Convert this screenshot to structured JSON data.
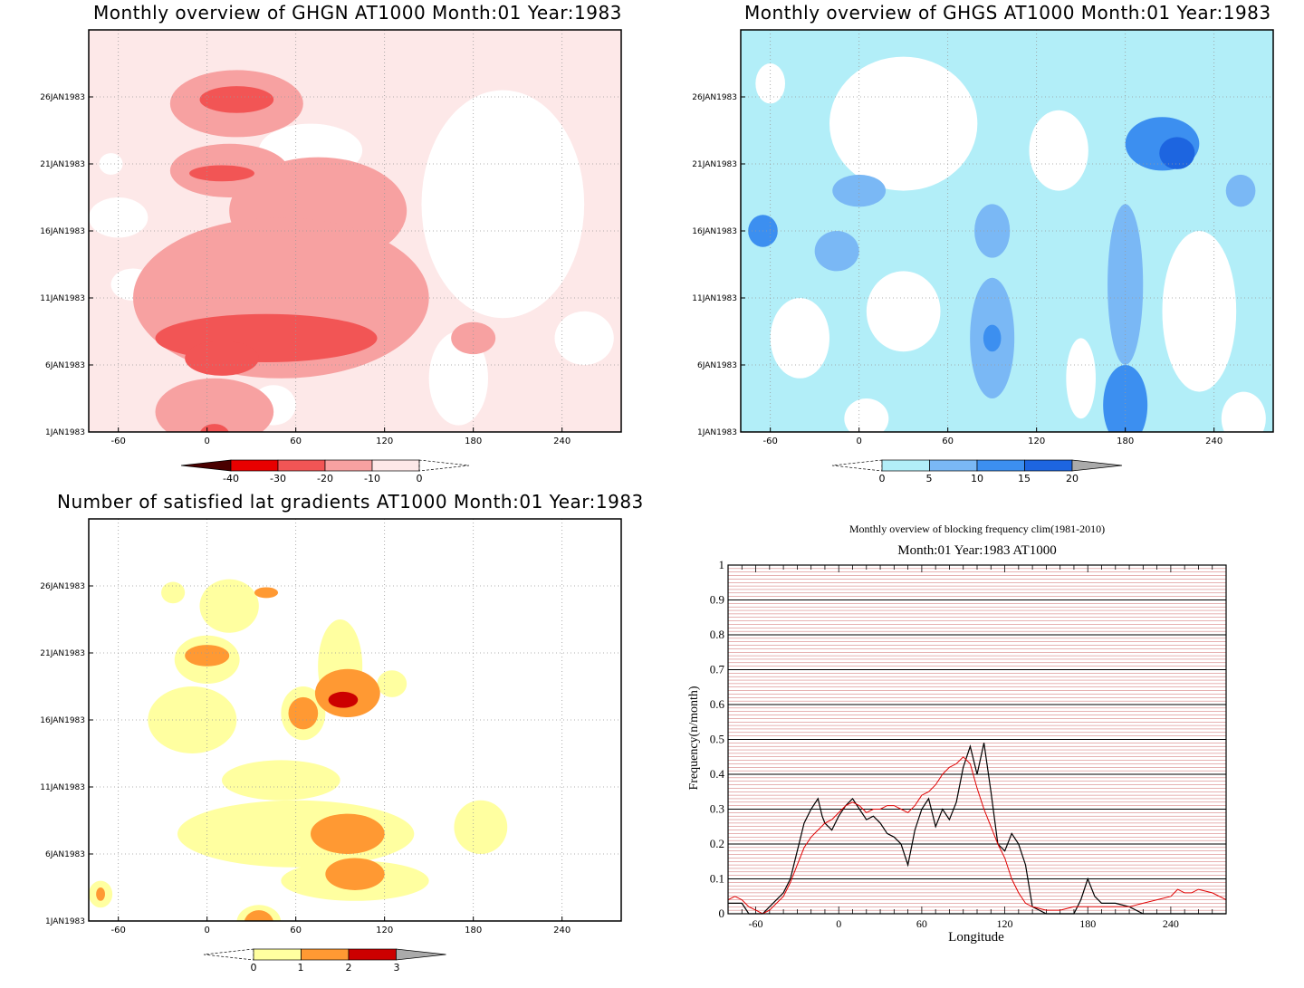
{
  "colors": {
    "red": [
      "#4a0000",
      "#e80000",
      "#f25555",
      "#f7a1a1",
      "#fde8e8"
    ],
    "blue": [
      "#b2eef8",
      "#7ab8f5",
      "#3c8ff0",
      "#1d65e0",
      "#aaaaaa"
    ],
    "warm": [
      "#ffffa0",
      "#ff9933",
      "#cc0000",
      "#aaaaaa"
    ],
    "grid": "#c04040",
    "obs": "#000000",
    "clim": "#e00000"
  },
  "panels": [
    {
      "id": "ghgn",
      "title": "Monthly overview of GHGN AT1000 Month:01 Year:1983",
      "x_ticks": [
        "-60",
        "0",
        "60",
        "120",
        "180",
        "240"
      ],
      "y_ticks": [
        "26JAN1983",
        "21JAN1983",
        "16JAN1983",
        "11JAN1983",
        "6JAN1983",
        "1JAN1983"
      ],
      "colorbar": [
        "-40",
        "-30",
        "-20",
        "-10",
        "0"
      ]
    },
    {
      "id": "ghgs",
      "title": "Monthly overview of GHGS AT1000 Month:01 Year:1983",
      "x_ticks": [
        "-60",
        "0",
        "60",
        "120",
        "180",
        "240"
      ],
      "y_ticks": [
        "26JAN1983",
        "21JAN1983",
        "16JAN1983",
        "11JAN1983",
        "6JAN1983",
        "1JAN1983"
      ],
      "colorbar": [
        "0",
        "5",
        "10",
        "15",
        "20"
      ]
    },
    {
      "id": "sat",
      "title": "Number of satisfied lat gradients AT1000 Month:01 Year:1983",
      "x_ticks": [
        "-60",
        "0",
        "60",
        "120",
        "180",
        "240"
      ],
      "y_ticks": [
        "26JAN1983",
        "21JAN1983",
        "16JAN1983",
        "11JAN1983",
        "6JAN1983",
        "1JAN1983"
      ],
      "colorbar": [
        "0",
        "1",
        "2",
        "3"
      ]
    }
  ],
  "freq": {
    "title": "Monthly overview of blocking frequency clim(1981-2010)",
    "subtitle": "Month:01 Year:1983  AT1000",
    "xlabel": "Longitude",
    "ylabel": "Frequency(n/month)",
    "x_ticks": [
      "-60",
      "0",
      "60",
      "120",
      "180",
      "240"
    ],
    "y_ticks": [
      "0",
      "0.1",
      "0.2",
      "0.3",
      "0.4",
      "0.5",
      "0.6",
      "0.7",
      "0.8",
      "0.9",
      "1"
    ]
  },
  "chart_data": [
    {
      "type": "heatmap",
      "title": "Monthly overview of GHGN AT1000 Month:01 Year:1983",
      "x_range": [
        -80,
        280
      ],
      "y_range": [
        "1JAN1983",
        "31JAN1983"
      ],
      "levels": [
        -40,
        -30,
        -20,
        -10,
        0
      ],
      "blobs": [
        {
          "lon": 20,
          "day": 25.5,
          "rlon": 45,
          "rday": 2.5,
          "level": -10
        },
        {
          "lon": 20,
          "day": 25.8,
          "rlon": 25,
          "rday": 1.0,
          "level": -20
        },
        {
          "lon": 15,
          "day": 20.5,
          "rlon": 40,
          "rday": 2.0,
          "level": -10
        },
        {
          "lon": 10,
          "day": 20.3,
          "rlon": 22,
          "rday": 0.6,
          "level": -20
        },
        {
          "lon": 75,
          "day": 17.5,
          "rlon": 60,
          "rday": 4.0,
          "level": -10
        },
        {
          "lon": 50,
          "day": 11.0,
          "rlon": 100,
          "rday": 6.0,
          "level": -10
        },
        {
          "lon": 40,
          "day": 8.0,
          "rlon": 75,
          "rday": 1.8,
          "level": -20
        },
        {
          "lon": 10,
          "day": 6.5,
          "rlon": 25,
          "rday": 1.3,
          "level": -20
        },
        {
          "lon": 5,
          "day": 2.5,
          "rlon": 40,
          "rday": 2.5,
          "level": -10
        },
        {
          "lon": 5,
          "day": 0.8,
          "rlon": 10,
          "rday": 0.8,
          "level": -20
        },
        {
          "lon": 180,
          "day": 8.0,
          "rlon": 15,
          "rday": 1.2,
          "level": -10
        }
      ]
    },
    {
      "type": "heatmap",
      "title": "Monthly overview of GHGS AT1000 Month:01 Year:1983",
      "x_range": [
        -80,
        280
      ],
      "y_range": [
        "1JAN1983",
        "31JAN1983"
      ],
      "levels": [
        0,
        5,
        10,
        15,
        20
      ],
      "blobs": [
        {
          "lon": 0,
          "day": 19.0,
          "rlon": 18,
          "rday": 1.2,
          "level": 5
        },
        {
          "lon": -65,
          "day": 16.0,
          "rlon": 10,
          "rday": 1.2,
          "level": 10
        },
        {
          "lon": -15,
          "day": 14.5,
          "rlon": 15,
          "rday": 1.5,
          "level": 5
        },
        {
          "lon": 90,
          "day": 16.0,
          "rlon": 12,
          "rday": 2.0,
          "level": 5
        },
        {
          "lon": 90,
          "day": 8.0,
          "rlon": 15,
          "rday": 4.5,
          "level": 5
        },
        {
          "lon": 90,
          "day": 8.0,
          "rlon": 6,
          "rday": 1.0,
          "level": 10
        },
        {
          "lon": 180,
          "day": 3.0,
          "rlon": 15,
          "rday": 3.0,
          "level": 10
        },
        {
          "lon": 180,
          "day": 12.0,
          "rlon": 12,
          "rday": 6.0,
          "level": 5
        },
        {
          "lon": 205,
          "day": 22.5,
          "rlon": 25,
          "rday": 2.0,
          "level": 10
        },
        {
          "lon": 215,
          "day": 21.8,
          "rlon": 12,
          "rday": 1.2,
          "level": 15
        },
        {
          "lon": 258,
          "day": 19.0,
          "rlon": 10,
          "rday": 1.2,
          "level": 5
        }
      ]
    },
    {
      "type": "heatmap",
      "title": "Number of satisfied lat gradients AT1000 Month:01 Year:1983",
      "x_range": [
        -80,
        280
      ],
      "y_range": [
        "1JAN1983",
        "31JAN1983"
      ],
      "levels": [
        0,
        1,
        2,
        3
      ],
      "blobs": [
        {
          "lon": -23,
          "day": 25.5,
          "rlon": 8,
          "rday": 0.8,
          "level": 0
        },
        {
          "lon": 15,
          "day": 24.5,
          "rlon": 20,
          "rday": 2.0,
          "level": 0
        },
        {
          "lon": 40,
          "day": 25.5,
          "rlon": 8,
          "rday": 0.4,
          "level": 1
        },
        {
          "lon": 0,
          "day": 20.5,
          "rlon": 22,
          "rday": 1.8,
          "level": 0
        },
        {
          "lon": 0,
          "day": 20.8,
          "rlon": 15,
          "rday": 0.8,
          "level": 1
        },
        {
          "lon": -10,
          "day": 16.0,
          "rlon": 30,
          "rday": 2.5,
          "level": 0
        },
        {
          "lon": 90,
          "day": 20.0,
          "rlon": 15,
          "rday": 3.5,
          "level": 0
        },
        {
          "lon": 65,
          "day": 16.5,
          "rlon": 15,
          "rday": 2.0,
          "level": 0
        },
        {
          "lon": 65,
          "day": 16.5,
          "rlon": 10,
          "rday": 1.2,
          "level": 1
        },
        {
          "lon": 95,
          "day": 18.0,
          "rlon": 22,
          "rday": 1.8,
          "level": 1
        },
        {
          "lon": 92,
          "day": 17.5,
          "rlon": 10,
          "rday": 0.6,
          "level": 2
        },
        {
          "lon": 125,
          "day": 18.7,
          "rlon": 10,
          "rday": 1.0,
          "level": 0
        },
        {
          "lon": 50,
          "day": 11.5,
          "rlon": 40,
          "rday": 1.5,
          "level": 0
        },
        {
          "lon": 60,
          "day": 7.5,
          "rlon": 80,
          "rday": 2.5,
          "level": 0
        },
        {
          "lon": 95,
          "day": 7.5,
          "rlon": 25,
          "rday": 1.5,
          "level": 1
        },
        {
          "lon": 100,
          "day": 4.5,
          "rlon": 20,
          "rday": 1.2,
          "level": 1
        },
        {
          "lon": 100,
          "day": 4.0,
          "rlon": 50,
          "rday": 1.5,
          "level": 0
        },
        {
          "lon": 35,
          "day": 0.8,
          "rlon": 10,
          "rday": 1.0,
          "level": 1
        },
        {
          "lon": 35,
          "day": 0.9,
          "rlon": 15,
          "rday": 1.3,
          "level": 0
        },
        {
          "lon": 185,
          "day": 8.0,
          "rlon": 18,
          "rday": 2.0,
          "level": 0
        },
        {
          "lon": -72,
          "day": 3.0,
          "rlon": 8,
          "rday": 1.0,
          "level": 0
        },
        {
          "lon": -72,
          "day": 3.0,
          "rlon": 3,
          "rday": 0.5,
          "level": 1
        }
      ]
    },
    {
      "type": "line",
      "title": "Monthly overview of blocking frequency clim(1981-2010)",
      "subtitle": "Month:01 Year:1983  AT1000",
      "xlabel": "Longitude",
      "ylabel": "Frequency(n/month)",
      "xlim": [
        -80,
        280
      ],
      "ylim": [
        0,
        1
      ],
      "series": [
        {
          "name": "",
          "x": [
            -80,
            -70,
            -65,
            -55,
            -50,
            -45,
            -40,
            -35,
            -30,
            -25,
            -20,
            -15,
            -12,
            -10,
            -5,
            0,
            5,
            10,
            15,
            20,
            25,
            30,
            35,
            40,
            45,
            50,
            55,
            60,
            65,
            70,
            75,
            80,
            85,
            90,
            95,
            100,
            105,
            110,
            115,
            120,
            125,
            130,
            135,
            140,
            150,
            160,
            170,
            175,
            180,
            185,
            190,
            200,
            210,
            220,
            230,
            240,
            250,
            260,
            270,
            280
          ],
          "y": [
            0.03,
            0.03,
            0.0,
            0.0,
            0.02,
            0.04,
            0.06,
            0.1,
            0.18,
            0.26,
            0.3,
            0.33,
            0.28,
            0.26,
            0.24,
            0.28,
            0.31,
            0.33,
            0.3,
            0.27,
            0.28,
            0.26,
            0.23,
            0.22,
            0.2,
            0.14,
            0.24,
            0.3,
            0.33,
            0.25,
            0.3,
            0.27,
            0.32,
            0.42,
            0.48,
            0.4,
            0.49,
            0.35,
            0.2,
            0.18,
            0.23,
            0.2,
            0.14,
            0.02,
            0.0,
            0.0,
            0.0,
            0.04,
            0.1,
            0.05,
            0.03,
            0.03,
            0.02,
            0.0,
            0.0,
            0.0,
            0.0,
            0.0,
            0.0,
            0.0
          ]
        },
        {
          "name": "",
          "x": [
            -80,
            -75,
            -70,
            -65,
            -60,
            -55,
            -50,
            -45,
            -40,
            -35,
            -30,
            -25,
            -20,
            -15,
            -10,
            -5,
            0,
            5,
            10,
            15,
            20,
            25,
            30,
            35,
            40,
            45,
            50,
            55,
            60,
            65,
            70,
            75,
            80,
            85,
            90,
            95,
            100,
            105,
            110,
            115,
            120,
            125,
            130,
            135,
            140,
            150,
            160,
            170,
            180,
            190,
            200,
            210,
            220,
            230,
            240,
            245,
            250,
            255,
            260,
            270,
            280
          ],
          "y": [
            0.04,
            0.05,
            0.04,
            0.02,
            0.01,
            0.0,
            0.01,
            0.03,
            0.05,
            0.09,
            0.14,
            0.19,
            0.22,
            0.24,
            0.26,
            0.27,
            0.29,
            0.31,
            0.32,
            0.31,
            0.29,
            0.3,
            0.3,
            0.31,
            0.31,
            0.3,
            0.29,
            0.31,
            0.34,
            0.35,
            0.37,
            0.4,
            0.42,
            0.43,
            0.45,
            0.43,
            0.36,
            0.3,
            0.25,
            0.2,
            0.16,
            0.1,
            0.06,
            0.03,
            0.02,
            0.01,
            0.01,
            0.02,
            0.02,
            0.02,
            0.02,
            0.02,
            0.03,
            0.04,
            0.05,
            0.07,
            0.06,
            0.06,
            0.07,
            0.06,
            0.04
          ]
        }
      ]
    }
  ]
}
